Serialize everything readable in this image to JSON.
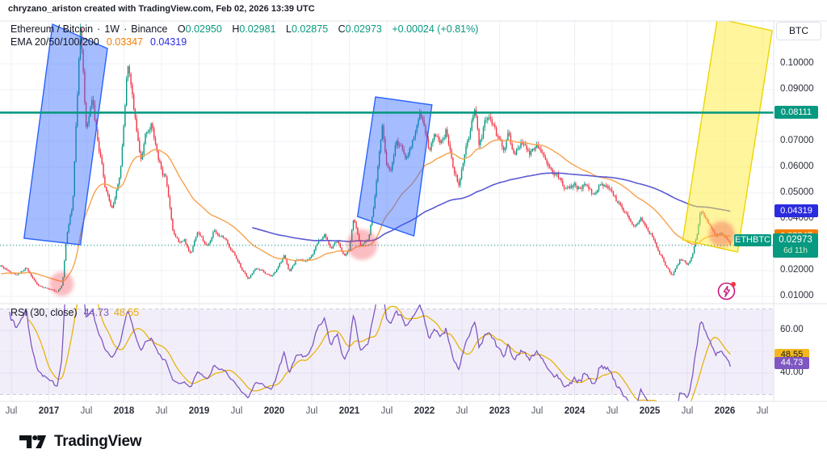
{
  "attribution": "chryzano_ariston created with TradingView.com, Feb 02, 2026 13:39 UTC",
  "legend": {
    "symbol": "Ethereum / Bitcoin",
    "separator": "·",
    "interval": "1W",
    "exchange": "Binance",
    "ohlc": {
      "o_label": "O",
      "o": "0.02950",
      "h_label": "H",
      "h": "0.02981",
      "l_label": "L",
      "l": "0.02875",
      "c_label": "C",
      "c": "0.02973",
      "change": "+0.00024 (+0.81%)"
    },
    "ema_label": "EMA 20/50/100/200",
    "ema_fast_value": "0.03347",
    "ema_slow_value": "0.04319"
  },
  "rsi_legend": {
    "label": "RSI (30, close)",
    "rsi_value": "44.73",
    "ma_value": "48.55"
  },
  "price_scale": {
    "unit_button": "BTC",
    "ticks": [
      {
        "label": "0.10000",
        "value": 0.1
      },
      {
        "label": "0.09000",
        "value": 0.09
      },
      {
        "label": "0.07000",
        "value": 0.07
      },
      {
        "label": "0.06000",
        "value": 0.06
      },
      {
        "label": "0.05000",
        "value": 0.05
      },
      {
        "label": "0.04000",
        "value": 0.04
      },
      {
        "label": "0.02000",
        "value": 0.02
      },
      {
        "label": "0.01000",
        "value": 0.01
      }
    ],
    "tags": {
      "hline": {
        "text": "0.08111"
      },
      "ema_slow": {
        "text": "0.04319"
      },
      "ema_fast": {
        "text": "0.03347"
      },
      "symbol_tag": "ETHBTC",
      "last": {
        "text": "0.02973",
        "countdown": "6d 11h"
      }
    }
  },
  "rsi_scale": {
    "ticks": [
      {
        "label": "60.00",
        "value": 60
      },
      {
        "label": "40.00",
        "value": 40
      }
    ],
    "tags": {
      "ma": {
        "text": "48.55"
      },
      "rsi": {
        "text": "44.73"
      }
    }
  },
  "time_axis": {
    "ticks": [
      {
        "label": "Jul",
        "t": 2016.5,
        "major": false
      },
      {
        "label": "2017",
        "t": 2017.0,
        "major": true
      },
      {
        "label": "Jul",
        "t": 2017.5,
        "major": false
      },
      {
        "label": "2018",
        "t": 2018.0,
        "major": true
      },
      {
        "label": "Jul",
        "t": 2018.5,
        "major": false
      },
      {
        "label": "2019",
        "t": 2019.0,
        "major": true
      },
      {
        "label": "Jul",
        "t": 2019.5,
        "major": false
      },
      {
        "label": "2020",
        "t": 2020.0,
        "major": true
      },
      {
        "label": "Jul",
        "t": 2020.5,
        "major": false
      },
      {
        "label": "2021",
        "t": 2021.0,
        "major": true
      },
      {
        "label": "Jul",
        "t": 2021.5,
        "major": false
      },
      {
        "label": "2022",
        "t": 2022.0,
        "major": true
      },
      {
        "label": "Jul",
        "t": 2022.5,
        "major": false
      },
      {
        "label": "2023",
        "t": 2023.0,
        "major": true
      },
      {
        "label": "Jul",
        "t": 2023.5,
        "major": false
      },
      {
        "label": "2024",
        "t": 2024.0,
        "major": true
      },
      {
        "label": "Jul",
        "t": 2024.5,
        "major": false
      },
      {
        "label": "2025",
        "t": 2025.0,
        "major": true
      },
      {
        "label": "Jul",
        "t": 2025.5,
        "major": false
      },
      {
        "label": "2026",
        "t": 2026.0,
        "major": true
      },
      {
        "label": "Jul",
        "t": 2026.5,
        "major": false
      }
    ]
  },
  "footer": {
    "logo_text": "TradingView"
  },
  "colors": {
    "up": "#089981",
    "down": "#f23645",
    "teal": "#089981",
    "ema_fast": "#f7a24b",
    "ema_slow": "#5a5ad2",
    "rsi": "#7e57c2",
    "rsi_ma": "#e8b30c",
    "box_fill": "rgba(41,98,255,0.42)",
    "box_stroke": "#2962ff",
    "channel_fill": "rgba(255,235,59,0.5)",
    "channel_stroke": "#edd500",
    "circle_fill": "rgba(242,54,69,0.33)",
    "grid": "#eef0f5",
    "band_fill": "rgba(126,87,194,0.1)",
    "flash": "#c9177e",
    "alert_dot": "#f23645"
  },
  "chart_data": {
    "type": "candlestick",
    "title": "Ethereum / Bitcoin 1W Binance",
    "timeframe": "1W",
    "last_ohlc": {
      "open": 0.0295,
      "high": 0.02981,
      "low": 0.02875,
      "close": 0.02973,
      "change": 0.00024,
      "change_pct": 0.81
    },
    "hline_price": 0.08111,
    "last_price": 0.02973,
    "ema_fast_period": 50,
    "ema_slow_period": 200,
    "ema_values": {
      "fast": 0.03347,
      "slow": 0.04319
    },
    "rsi_period": 30,
    "rsi_ma_period": 14,
    "rsi_values": {
      "rsi": 44.73,
      "ma": 48.55
    },
    "rsi_levels": [
      70,
      50,
      30
    ],
    "price_anchors": [
      [
        2015.9,
        0.0155
      ],
      [
        2016.1,
        0.021
      ],
      [
        2016.37,
        0.0215
      ],
      [
        2016.55,
        0.0185
      ],
      [
        2016.7,
        0.021
      ],
      [
        2016.85,
        0.0142
      ],
      [
        2017.0,
        0.0126
      ],
      [
        2017.1,
        0.0115
      ],
      [
        2017.18,
        0.014
      ],
      [
        2017.24,
        0.033
      ],
      [
        2017.32,
        0.045
      ],
      [
        2017.42,
        0.112
      ],
      [
        2017.5,
        0.073
      ],
      [
        2017.58,
        0.088
      ],
      [
        2017.66,
        0.067
      ],
      [
        2017.75,
        0.052
      ],
      [
        2017.85,
        0.0435
      ],
      [
        2017.95,
        0.06
      ],
      [
        2018.05,
        0.104
      ],
      [
        2018.13,
        0.082
      ],
      [
        2018.22,
        0.06
      ],
      [
        2018.3,
        0.072
      ],
      [
        2018.37,
        0.076
      ],
      [
        2018.46,
        0.061
      ],
      [
        2018.55,
        0.056
      ],
      [
        2018.65,
        0.0335
      ],
      [
        2018.73,
        0.0305
      ],
      [
        2018.8,
        0.0315
      ],
      [
        2018.89,
        0.0265
      ],
      [
        2018.98,
        0.0355
      ],
      [
        2019.1,
        0.0295
      ],
      [
        2019.2,
        0.036
      ],
      [
        2019.35,
        0.0315
      ],
      [
        2019.45,
        0.0275
      ],
      [
        2019.55,
        0.0215
      ],
      [
        2019.65,
        0.0165
      ],
      [
        2019.75,
        0.021
      ],
      [
        2019.85,
        0.0195
      ],
      [
        2019.95,
        0.0172
      ],
      [
        2020.05,
        0.021
      ],
      [
        2020.13,
        0.0253
      ],
      [
        2020.2,
        0.0198
      ],
      [
        2020.3,
        0.024
      ],
      [
        2020.42,
        0.0235
      ],
      [
        2020.52,
        0.0258
      ],
      [
        2020.6,
        0.032
      ],
      [
        2020.68,
        0.034
      ],
      [
        2020.76,
        0.028
      ],
      [
        2020.84,
        0.0305
      ],
      [
        2020.93,
        0.026
      ],
      [
        2021.0,
        0.0275
      ],
      [
        2021.06,
        0.0405
      ],
      [
        2021.15,
        0.0295
      ],
      [
        2021.25,
        0.033
      ],
      [
        2021.33,
        0.046
      ],
      [
        2021.4,
        0.065
      ],
      [
        2021.44,
        0.077
      ],
      [
        2021.5,
        0.0605
      ],
      [
        2021.56,
        0.057
      ],
      [
        2021.63,
        0.069
      ],
      [
        2021.71,
        0.0655
      ],
      [
        2021.78,
        0.0635
      ],
      [
        2021.86,
        0.073
      ],
      [
        2021.93,
        0.0808
      ],
      [
        2022.0,
        0.0775
      ],
      [
        2022.06,
        0.068
      ],
      [
        2022.13,
        0.0715
      ],
      [
        2022.21,
        0.069
      ],
      [
        2022.29,
        0.075
      ],
      [
        2022.38,
        0.06
      ],
      [
        2022.46,
        0.052
      ],
      [
        2022.55,
        0.068
      ],
      [
        2022.62,
        0.076
      ],
      [
        2022.68,
        0.0845
      ],
      [
        2022.73,
        0.0675
      ],
      [
        2022.8,
        0.076
      ],
      [
        2022.86,
        0.0795
      ],
      [
        2022.95,
        0.072
      ],
      [
        2023.05,
        0.068
      ],
      [
        2023.12,
        0.0735
      ],
      [
        2023.2,
        0.064
      ],
      [
        2023.3,
        0.069
      ],
      [
        2023.4,
        0.062
      ],
      [
        2023.5,
        0.065
      ],
      [
        2023.6,
        0.0625
      ],
      [
        2023.7,
        0.06
      ],
      [
        2023.8,
        0.0555
      ],
      [
        2023.88,
        0.051
      ],
      [
        2023.95,
        0.0535
      ],
      [
        2024.05,
        0.052
      ],
      [
        2024.15,
        0.055
      ],
      [
        2024.25,
        0.0495
      ],
      [
        2024.35,
        0.0535
      ],
      [
        2024.45,
        0.054
      ],
      [
        2024.55,
        0.0475
      ],
      [
        2024.63,
        0.0435
      ],
      [
        2024.7,
        0.0405
      ],
      [
        2024.78,
        0.037
      ],
      [
        2024.88,
        0.0395
      ],
      [
        2024.95,
        0.035
      ],
      [
        2025.05,
        0.0325
      ],
      [
        2025.12,
        0.0275
      ],
      [
        2025.2,
        0.023
      ],
      [
        2025.3,
        0.0182
      ],
      [
        2025.4,
        0.0245
      ],
      [
        2025.5,
        0.0228
      ],
      [
        2025.57,
        0.026
      ],
      [
        2025.63,
        0.033
      ],
      [
        2025.68,
        0.042
      ],
      [
        2025.75,
        0.039
      ],
      [
        2025.82,
        0.0365
      ],
      [
        2025.88,
        0.034
      ],
      [
        2025.95,
        0.0355
      ],
      [
        2026.0,
        0.0345
      ],
      [
        2026.05,
        0.0315
      ],
      [
        2026.09,
        0.02973
      ]
    ],
    "boxes": [
      {
        "points": [
          [
            2016.67,
            0.0325
          ],
          [
            2017.05,
            0.1153
          ],
          [
            2017.78,
            0.1059
          ],
          [
            2017.42,
            0.03
          ]
        ]
      },
      {
        "points": [
          [
            2021.11,
            0.0409
          ],
          [
            2021.35,
            0.0872
          ],
          [
            2022.1,
            0.0841
          ],
          [
            2021.86,
            0.0334
          ]
        ]
      }
    ],
    "channel": {
      "points": [
        [
          2025.44,
          0.0319
        ],
        [
          2025.9,
          0.1175
        ],
        [
          2026.63,
          0.1128
        ],
        [
          2026.17,
          0.0272
        ]
      ]
    },
    "circles": [
      {
        "t": 2017.17,
        "price": 0.0148,
        "r": 15
      },
      {
        "t": 2021.17,
        "price": 0.03,
        "r": 19
      },
      {
        "t": 2025.96,
        "price": 0.0341,
        "r": 16
      }
    ]
  }
}
